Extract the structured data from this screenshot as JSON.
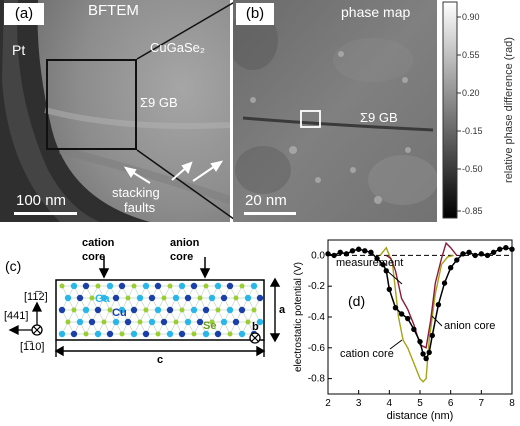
{
  "panel_a": {
    "tag": "(a)",
    "title": "BFTEM",
    "pt_label": "Pt",
    "material_label": "CuGaSe₂",
    "gb_label": "Σ9 GB",
    "faults_line1": "stacking",
    "faults_line2": "faults",
    "scale_bar": "100 nm"
  },
  "panel_b": {
    "tag": "(b)",
    "title": "phase map",
    "gb_label": "Σ9 GB",
    "scale_bar": "20 nm"
  },
  "colorbar": {
    "label": "relative phase difference (rad)",
    "ticks": [
      "0.90",
      "0.55",
      "0.20",
      "-0.15",
      "-0.50",
      "-0.85"
    ]
  },
  "panel_c": {
    "tag": "(c)",
    "cation_line1": "cation",
    "cation_line2": "core",
    "anion_line1": "anion",
    "anion_line2": "core",
    "atom_ga": "Ga",
    "atom_cu": "Cu",
    "atom_se": "Se",
    "dir_up": "[11̅2]",
    "dir_left": "[441]",
    "dir_out": "[1̅10]",
    "len_a": "a",
    "len_b": "b",
    "len_c": "c",
    "colors": {
      "ga": "#29b6e8",
      "cu": "#1a3fa8",
      "se": "#9acd32"
    }
  },
  "panel_d": {
    "tag": "(d)",
    "legend_measurement": "measurement",
    "label_anion": "anion core",
    "label_cation": "cation core",
    "chart_data": {
      "type": "line",
      "xlabel": "distance (nm)",
      "ylabel": "electrostatic potential (V)",
      "xlim": [
        2,
        8
      ],
      "ylim": [
        -0.9,
        0.1
      ],
      "xticks": [
        "2",
        "3",
        "4",
        "5",
        "6",
        "7",
        "8"
      ],
      "yticks": [
        "0.0",
        "-0.2",
        "-0.4",
        "-0.6",
        "-0.8"
      ],
      "series": [
        {
          "name": "measurement",
          "color": "#000000",
          "x": [
            2.0,
            2.2,
            2.4,
            2.6,
            2.8,
            3.0,
            3.2,
            3.4,
            3.6,
            3.8,
            3.9,
            4.0,
            4.2,
            4.4,
            4.6,
            4.8,
            5.0,
            5.1,
            5.2,
            5.3,
            5.4,
            5.6,
            5.8,
            6.0,
            6.2,
            6.4,
            6.6,
            6.8,
            7.0,
            7.2,
            7.4,
            7.6,
            7.8,
            8.0
          ],
          "y": [
            0.01,
            0.0,
            0.02,
            0.01,
            0.03,
            0.04,
            0.03,
            0.02,
            -0.02,
            -0.06,
            -0.1,
            -0.22,
            -0.34,
            -0.38,
            -0.41,
            -0.48,
            -0.56,
            -0.64,
            -0.67,
            -0.63,
            -0.52,
            -0.32,
            -0.18,
            -0.08,
            -0.03,
            0.01,
            0.02,
            0.0,
            0.01,
            0.0,
            0.02,
            0.04,
            0.05,
            0.04
          ]
        },
        {
          "name": "anion core",
          "color": "#8b1a3c",
          "x": [
            3.9,
            4.05,
            4.2,
            4.4,
            4.6,
            4.8,
            5.0,
            5.2,
            5.35,
            5.5,
            5.7,
            5.85,
            6.0,
            6.2
          ],
          "y": [
            0.0,
            -0.02,
            -0.1,
            -0.28,
            -0.35,
            -0.45,
            -0.58,
            -0.6,
            -0.42,
            -0.18,
            -0.02,
            0.08,
            0.05,
            0.0
          ]
        },
        {
          "name": "cation core",
          "color": "#a6a414",
          "x": [
            3.7,
            3.9,
            4.1,
            4.3,
            4.45,
            4.6,
            4.8,
            5.0,
            5.1,
            5.2,
            5.3,
            5.5,
            5.7,
            5.9,
            6.1
          ],
          "y": [
            0.0,
            0.05,
            -0.05,
            -0.4,
            -0.55,
            -0.6,
            -0.7,
            -0.8,
            -0.82,
            -0.8,
            -0.55,
            -0.25,
            -0.06,
            -0.01,
            0.0
          ]
        }
      ]
    }
  }
}
